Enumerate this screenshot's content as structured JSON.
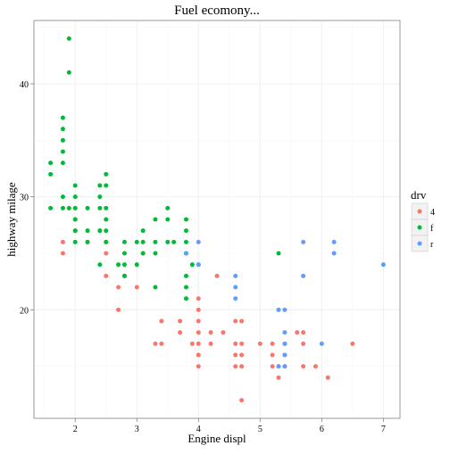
{
  "chart_data": {
    "type": "scatter",
    "title": "Fuel ecomony...",
    "xlabel": "Engine displ",
    "ylabel": "highway milage",
    "xlim": [
      1.33,
      7.27
    ],
    "ylim": [
      10.4,
      45.6
    ],
    "xticks": [
      2,
      3,
      4,
      5,
      6,
      7
    ],
    "yticks": [
      20,
      30,
      40
    ],
    "grid": true,
    "legend": {
      "title": "drv",
      "placement": "right"
    },
    "series": [
      {
        "name": "4",
        "color": "#F8766D",
        "points": [
          [
            1.8,
            26
          ],
          [
            1.8,
            25
          ],
          [
            2.0,
            28
          ],
          [
            2.0,
            27
          ],
          [
            2.2,
            26
          ],
          [
            2.4,
            27
          ],
          [
            2.5,
            26
          ],
          [
            2.5,
            25
          ],
          [
            2.5,
            23
          ],
          [
            2.7,
            20
          ],
          [
            2.7,
            22
          ],
          [
            3.0,
            22
          ],
          [
            3.1,
            25
          ],
          [
            3.3,
            17
          ],
          [
            3.4,
            17
          ],
          [
            3.4,
            19
          ],
          [
            3.7,
            19
          ],
          [
            3.7,
            18
          ],
          [
            3.9,
            17
          ],
          [
            4.0,
            17
          ],
          [
            4.0,
            16
          ],
          [
            4.0,
            18
          ],
          [
            4.0,
            15
          ],
          [
            4.0,
            19
          ],
          [
            4.0,
            20
          ],
          [
            4.0,
            21
          ],
          [
            4.2,
            18
          ],
          [
            4.2,
            17
          ],
          [
            4.3,
            23
          ],
          [
            4.4,
            18
          ],
          [
            4.6,
            17
          ],
          [
            4.6,
            16
          ],
          [
            4.6,
            15
          ],
          [
            4.6,
            19
          ],
          [
            4.7,
            17
          ],
          [
            4.7,
            16
          ],
          [
            4.7,
            15
          ],
          [
            4.7,
            12
          ],
          [
            4.7,
            19
          ],
          [
            5.0,
            17
          ],
          [
            5.2,
            17
          ],
          [
            5.2,
            16
          ],
          [
            5.2,
            15
          ],
          [
            5.3,
            14
          ],
          [
            5.4,
            15
          ],
          [
            5.4,
            16
          ],
          [
            5.6,
            18
          ],
          [
            5.7,
            17
          ],
          [
            5.7,
            15
          ],
          [
            5.7,
            18
          ],
          [
            5.9,
            15
          ],
          [
            6.1,
            14
          ],
          [
            6.5,
            17
          ],
          [
            5.4,
            17
          ],
          [
            5.3,
            15
          ]
        ]
      },
      {
        "name": "f",
        "color": "#00BA38",
        "points": [
          [
            1.6,
            33
          ],
          [
            1.6,
            32
          ],
          [
            1.6,
            29
          ],
          [
            1.8,
            37
          ],
          [
            1.8,
            36
          ],
          [
            1.8,
            35
          ],
          [
            1.8,
            34
          ],
          [
            1.8,
            33
          ],
          [
            1.8,
            30
          ],
          [
            1.8,
            29
          ],
          [
            1.9,
            44
          ],
          [
            1.9,
            41
          ],
          [
            1.9,
            29
          ],
          [
            2.0,
            31
          ],
          [
            2.0,
            30
          ],
          [
            2.0,
            29
          ],
          [
            2.0,
            28
          ],
          [
            2.0,
            27
          ],
          [
            2.0,
            26
          ],
          [
            2.2,
            29
          ],
          [
            2.2,
            27
          ],
          [
            2.2,
            26
          ],
          [
            2.4,
            31
          ],
          [
            2.4,
            30
          ],
          [
            2.4,
            29
          ],
          [
            2.4,
            27
          ],
          [
            2.4,
            24
          ],
          [
            2.5,
            32
          ],
          [
            2.5,
            31
          ],
          [
            2.5,
            29
          ],
          [
            2.5,
            28
          ],
          [
            2.5,
            27
          ],
          [
            2.5,
            26
          ],
          [
            2.7,
            24
          ],
          [
            2.8,
            26
          ],
          [
            2.8,
            25
          ],
          [
            2.8,
            24
          ],
          [
            2.8,
            23
          ],
          [
            3.0,
            26
          ],
          [
            3.0,
            24
          ],
          [
            3.1,
            27
          ],
          [
            3.1,
            26
          ],
          [
            3.3,
            28
          ],
          [
            3.3,
            26
          ],
          [
            3.3,
            25
          ],
          [
            3.3,
            22
          ],
          [
            3.5,
            29
          ],
          [
            3.5,
            28
          ],
          [
            3.5,
            26
          ],
          [
            3.6,
            26
          ],
          [
            3.8,
            28
          ],
          [
            3.8,
            27
          ],
          [
            3.8,
            26
          ],
          [
            3.8,
            25
          ],
          [
            3.8,
            23
          ],
          [
            3.8,
            21
          ],
          [
            3.9,
            24
          ],
          [
            4.0,
            24
          ],
          [
            5.3,
            25
          ],
          [
            2.8,
            23
          ],
          [
            3.1,
            25
          ],
          [
            3.8,
            22
          ]
        ]
      },
      {
        "name": "r",
        "color": "#619CFF",
        "points": [
          [
            3.8,
            25
          ],
          [
            4.0,
            26
          ],
          [
            4.0,
            24
          ],
          [
            4.6,
            23
          ],
          [
            4.6,
            22
          ],
          [
            4.6,
            21
          ],
          [
            5.3,
            20
          ],
          [
            5.4,
            20
          ],
          [
            5.4,
            17
          ],
          [
            5.4,
            18
          ],
          [
            5.4,
            16
          ],
          [
            5.4,
            15
          ],
          [
            5.7,
            26
          ],
          [
            5.7,
            23
          ],
          [
            6.0,
            17
          ],
          [
            6.2,
            26
          ],
          [
            6.2,
            25
          ],
          [
            7.0,
            24
          ],
          [
            5.3,
            15
          ]
        ]
      }
    ]
  }
}
